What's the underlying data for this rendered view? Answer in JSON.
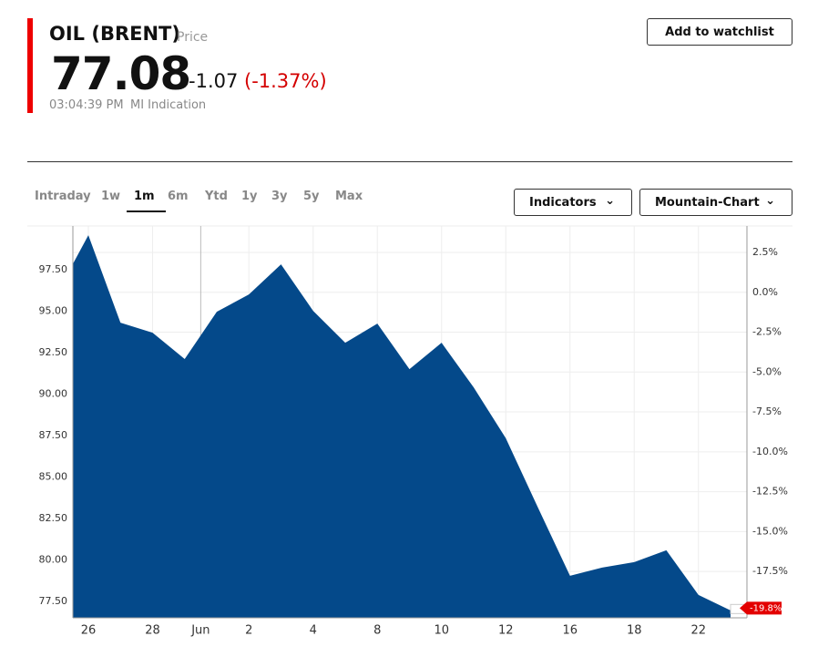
{
  "header": {
    "title": "OIL (BRENT)",
    "kind": "Price",
    "price": "77.08",
    "change": "-1.07",
    "change_pct": "(-1.37%)",
    "time": "03:04:39 PM",
    "source": "MI Indication",
    "watchlist": "Add to watchlist"
  },
  "tabs": {
    "items": [
      "Intraday",
      "1w",
      "1m",
      "6m",
      "Ytd",
      "1y",
      "3y",
      "5y",
      "Max"
    ],
    "active": 2
  },
  "controls": {
    "indicators": "Indicators",
    "chart_type": "Mountain-Chart"
  },
  "chart_data": {
    "type": "area",
    "color": "#04498a",
    "categories": [
      null,
      "26",
      null,
      "28",
      null,
      null,
      "2",
      null,
      "4",
      null,
      "8",
      null,
      "10",
      null,
      "12",
      null,
      "16",
      null,
      "18",
      null,
      "22",
      null
    ],
    "month_label": "Jun",
    "values": [
      96.0,
      99.59,
      94.31,
      93.71,
      92.12,
      94.97,
      96.02,
      97.83,
      95.03,
      93.1,
      94.26,
      91.51,
      93.1,
      90.41,
      87.34,
      83.16,
      79.04,
      79.53,
      79.86,
      80.58,
      77.88,
      76.95
    ],
    "ylim": [
      76.5,
      100.15
    ],
    "yticks": [
      {
        "value": 77.5,
        "label": "77.50"
      },
      {
        "value": 80,
        "label": "80.00"
      },
      {
        "value": 82.5,
        "label": "82.50"
      },
      {
        "value": 85,
        "label": "85.00"
      },
      {
        "value": 87.5,
        "label": "87.50"
      },
      {
        "value": 90,
        "label": "90.00"
      },
      {
        "value": 92.5,
        "label": "92.50"
      },
      {
        "value": 95,
        "label": "95.00"
      },
      {
        "value": 97.5,
        "label": "97.50"
      }
    ],
    "y2lim": [
      -20.41,
      4.16
    ],
    "y2ticks": [
      {
        "value": 2.5,
        "label": "2.5%"
      },
      {
        "value": 0,
        "label": "0.0%"
      },
      {
        "value": -2.5,
        "label": "-2.5%"
      },
      {
        "value": -5,
        "label": "-5.0%"
      },
      {
        "value": -7.5,
        "label": "-7.5%"
      },
      {
        "value": -10,
        "label": "-10.0%"
      },
      {
        "value": -12.5,
        "label": "-12.5%"
      },
      {
        "value": -15,
        "label": "-15.0%"
      },
      {
        "value": -17.5,
        "label": "-17.5%"
      }
    ],
    "last_change": {
      "value": -19.8,
      "label": "-19.8%"
    },
    "grid": true
  }
}
